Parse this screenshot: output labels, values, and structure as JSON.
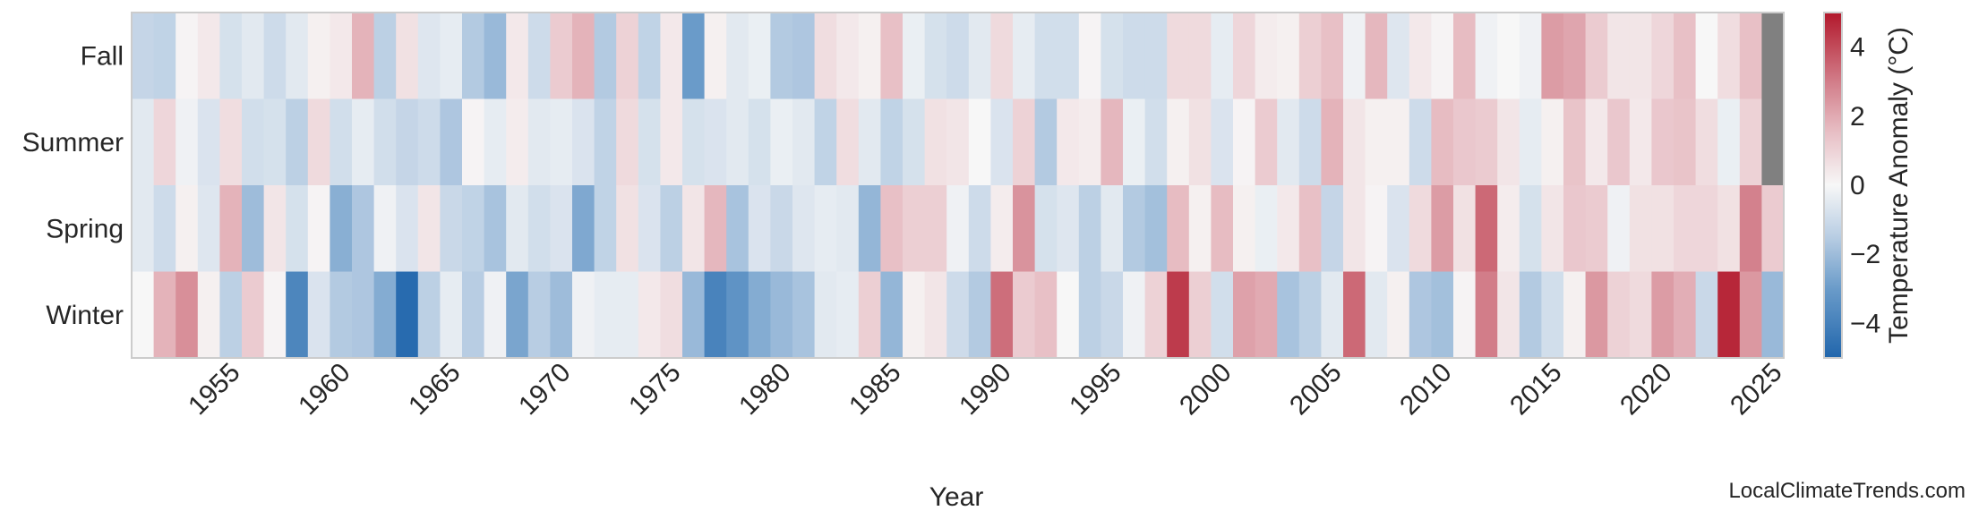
{
  "chart_data": {
    "type": "heatmap",
    "xlabel": "Year",
    "ylabel": "",
    "colorbar_label": "Temperature Anomaly (°C)",
    "colorbar_range": [
      -5,
      5
    ],
    "colorbar_ticks": [
      "4",
      "2",
      "0",
      "−2",
      "−4"
    ],
    "colorbar_tick_values": [
      4,
      2,
      0,
      -2,
      -4
    ],
    "colormap": {
      "low": "#2166ac",
      "mid": "#f7f7f7",
      "high": "#b2182b",
      "missing": "#808080"
    },
    "grid": false,
    "legend": "colorbar-right",
    "years": [
      1951,
      2025
    ],
    "x_ticks": [
      "1955",
      "1960",
      "1965",
      "1970",
      "1975",
      "1980",
      "1985",
      "1990",
      "1995",
      "2000",
      "2005",
      "2010",
      "2015",
      "2020",
      "2025"
    ],
    "rows": [
      "Fall",
      "Summer",
      "Spring",
      "Winter"
    ],
    "values": {
      "Fall": [
        -1.2,
        -1.3,
        0.1,
        0.4,
        -0.8,
        -0.5,
        -1.0,
        -0.5,
        0.2,
        0.4,
        1.8,
        -1.4,
        0.6,
        -0.6,
        -0.4,
        -1.6,
        -2.1,
        0.4,
        -1.0,
        1.2,
        1.8,
        -1.6,
        1.0,
        -1.3,
        0.4,
        -3.0,
        0.2,
        -0.5,
        -0.3,
        -1.6,
        -1.7,
        0.7,
        0.4,
        0.2,
        1.5,
        -0.3,
        -0.8,
        -1.0,
        -0.5,
        0.8,
        -0.4,
        -0.9,
        -0.9,
        0.1,
        -0.8,
        -1.0,
        -1.0,
        0.8,
        0.8,
        -0.4,
        0.9,
        0.3,
        0.2,
        1.1,
        1.5,
        -0.2,
        1.7,
        -0.6,
        0.4,
        0.1,
        1.6,
        -0.2,
        0.0,
        -0.2,
        2.3,
        2.1,
        1.2,
        0.5,
        0.5,
        0.9,
        1.5,
        0.0,
        0.7,
        1.5,
        null
      ],
      "Summer": [
        -0.5,
        0.9,
        -0.2,
        -0.7,
        0.7,
        -0.9,
        -0.8,
        -1.4,
        0.8,
        -0.9,
        -0.4,
        -0.9,
        -1.2,
        -1.0,
        -1.7,
        0.1,
        -0.4,
        0.3,
        -0.5,
        -0.4,
        -0.7,
        -1.3,
        0.8,
        -0.8,
        0.4,
        -0.8,
        -0.7,
        -0.5,
        -0.8,
        -0.3,
        -0.5,
        -1.3,
        0.7,
        -0.5,
        -1.3,
        -0.8,
        0.6,
        0.5,
        0.0,
        -0.7,
        1.0,
        -1.6,
        0.4,
        0.3,
        1.7,
        -0.3,
        -0.9,
        0.2,
        0.6,
        -0.7,
        0.1,
        1.2,
        -0.5,
        -1.0,
        1.8,
        0.5,
        0.2,
        0.2,
        -1.0,
        1.6,
        1.3,
        1.2,
        0.5,
        -0.4,
        0.2,
        1.4,
        0.4,
        1.3,
        0.4,
        1.3,
        1.4,
        0.7,
        -0.3,
        1.0,
        null
      ],
      "Spring": [
        -0.5,
        -1.0,
        0.2,
        -0.6,
        1.8,
        -2.0,
        0.5,
        -0.8,
        0.1,
        -2.4,
        -1.7,
        -0.2,
        -0.7,
        0.5,
        -1.1,
        -1.3,
        -1.8,
        -0.5,
        -0.9,
        -0.7,
        -2.6,
        -1.3,
        0.6,
        -0.7,
        -1.4,
        0.5,
        1.7,
        -1.8,
        -0.7,
        -1.1,
        -0.6,
        -0.4,
        -0.5,
        -2.2,
        1.5,
        1.1,
        1.1,
        -0.2,
        -1.0,
        0.3,
        2.5,
        -0.8,
        -0.6,
        -1.4,
        -0.5,
        -1.6,
        -1.9,
        1.6,
        0.2,
        1.6,
        0.2,
        -0.3,
        0.4,
        1.5,
        -1.2,
        0.5,
        0.1,
        -0.7,
        0.8,
        2.3,
        0.6,
        3.4,
        0.3,
        -0.8,
        0.5,
        1.3,
        1.2,
        -0.2,
        0.6,
        0.6,
        0.9,
        0.9,
        0.6,
        2.9,
        1.2
      ],
      "Winter": [
        0.0,
        1.8,
        2.6,
        0.2,
        -1.4,
        1.2,
        0.1,
        -3.8,
        -0.7,
        -1.6,
        -1.7,
        -2.5,
        -4.8,
        -1.4,
        -0.4,
        -1.5,
        -0.2,
        -2.7,
        -1.5,
        -2.0,
        -0.2,
        -0.4,
        -0.4,
        0.4,
        0.7,
        -2.1,
        -3.9,
        -3.3,
        -2.5,
        -2.1,
        -1.8,
        -0.5,
        -0.4,
        1.1,
        -2.2,
        0.2,
        0.5,
        -1.0,
        -1.6,
        3.3,
        1.2,
        1.5,
        0.0,
        -1.4,
        -1.1,
        -0.2,
        1.0,
        4.3,
        1.1,
        -0.9,
        2.2,
        2.0,
        -1.8,
        -1.4,
        -0.5,
        3.4,
        -0.5,
        0.2,
        -1.7,
        -1.9,
        0.1,
        3.0,
        0.5,
        -1.6,
        -0.9,
        0.2,
        2.4,
        1.0,
        0.8,
        2.3,
        1.9,
        -1.1,
        4.7,
        2.4,
        -2.1
      ]
    }
  },
  "watermark": "LocalClimateTrends.com"
}
